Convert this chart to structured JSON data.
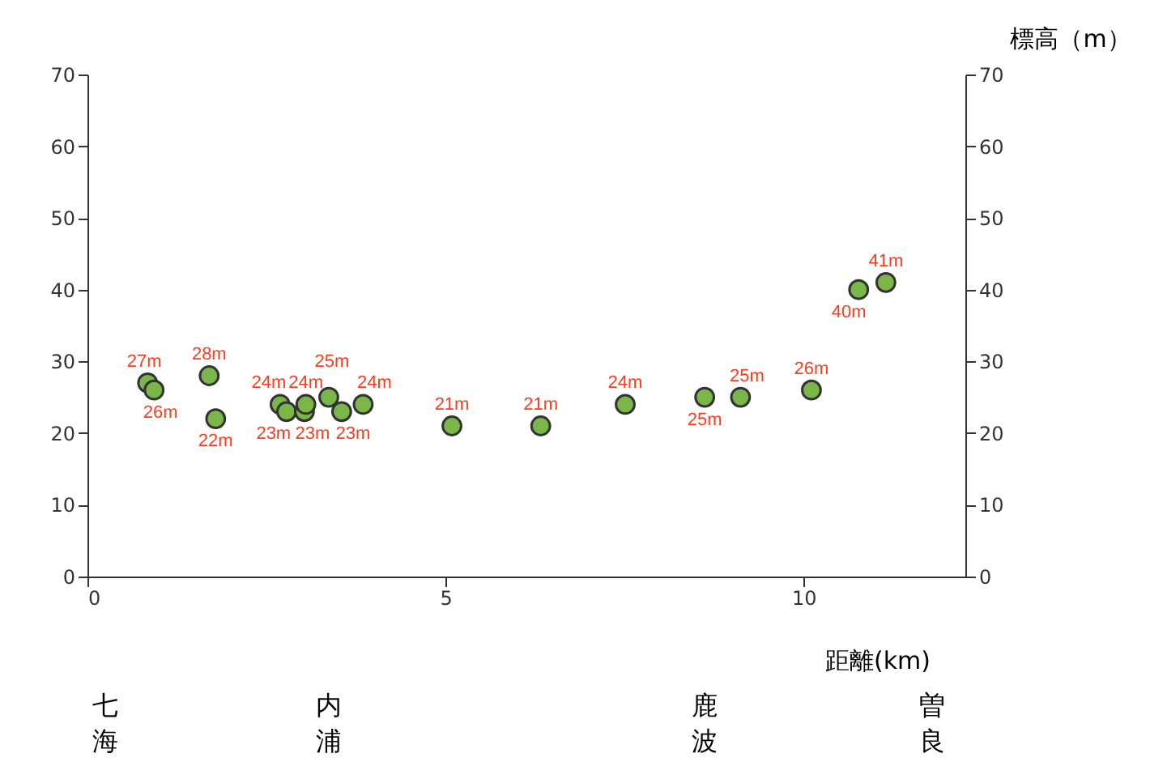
{
  "chart_data": {
    "type": "scatter",
    "xlabel": "距離(km)",
    "x": [
      0.84,
      0.93,
      1.7,
      1.79,
      2.69,
      2.78,
      3.03,
      3.05,
      3.37,
      3.55,
      3.85,
      5.09,
      6.33,
      7.51,
      8.62,
      9.12,
      10.11,
      10.77,
      11.15
    ],
    "series": [
      {
        "color": "#7ab648",
        "values": [
          27,
          26,
          28,
          22,
          24,
          23,
          23,
          24,
          25,
          23,
          24,
          21,
          21,
          24,
          25,
          25,
          26,
          40,
          41
        ],
        "value_labels": [
          "27m",
          "26m",
          "28m",
          "22m",
          "24m",
          "23m",
          "23m",
          "24m",
          "25m",
          "23m",
          "24m",
          "21m",
          "21m",
          "24m",
          "25m",
          "25m",
          "26m",
          "40m",
          "41m"
        ]
      }
    ],
    "xlim": [
      0,
      12.26
    ],
    "xticks": [
      0,
      5,
      10
    ],
    "ylim": [
      0,
      70
    ],
    "yticks": [
      0,
      10,
      20,
      30,
      40,
      50,
      60,
      70
    ],
    "y2label": "標高（m）",
    "y2lim": [
      0,
      70
    ],
    "y2ticks": [
      0,
      10,
      20,
      30,
      40,
      50,
      60,
      70
    ],
    "marker": "circle",
    "grid": false,
    "annotations": [
      "七海",
      "内浦",
      "鹿波",
      "曽良"
    ]
  }
}
